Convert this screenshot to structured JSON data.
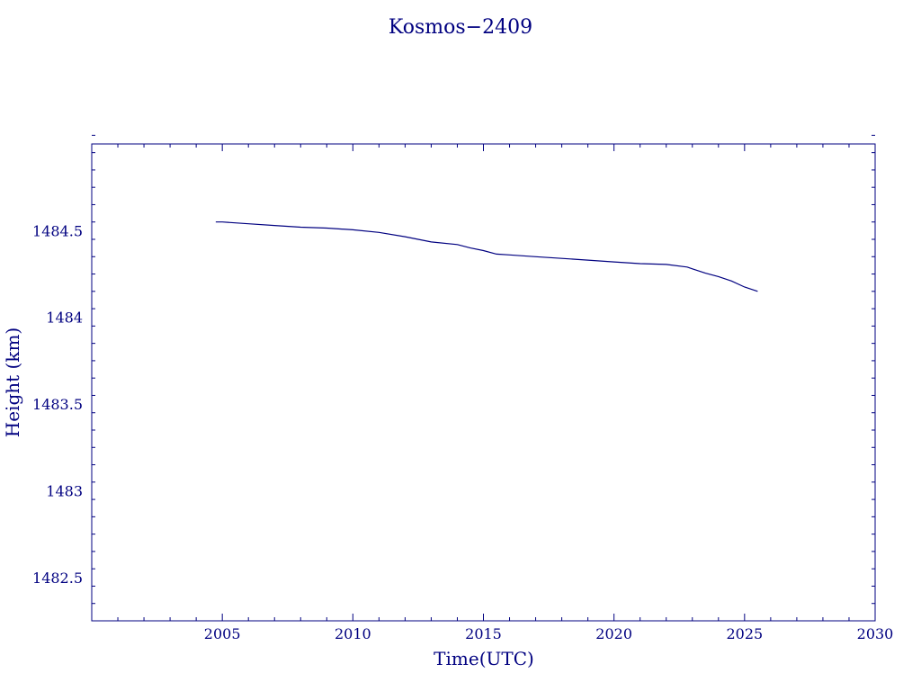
{
  "chart_data": {
    "type": "line",
    "title": "Kosmos−2409",
    "xlabel": "Time(UTC)",
    "ylabel": "Height (km)",
    "xlim": [
      2000,
      2030
    ],
    "ylim": [
      1482.25,
      1485.0
    ],
    "x_ticks": [
      2005,
      2010,
      2015,
      2020,
      2025,
      2030
    ],
    "x_tick_labels": [
      "2005",
      "2010",
      "2015",
      "2020",
      "2025",
      "2030"
    ],
    "x_minor_step": 1,
    "y_ticks": [
      1482.5,
      1483,
      1483.5,
      1484,
      1484.5
    ],
    "y_tick_labels": [
      "1482.5",
      "1483",
      "1483.5",
      "1484",
      "1484.5"
    ],
    "y_minor_step": 0.1,
    "grid": false,
    "color": "#000080",
    "series": [
      {
        "x": [
          2004.75,
          2005.0,
          2006.0,
          2007.0,
          2008.0,
          2009.0,
          2010.0,
          2011.0,
          2012.0,
          2013.0,
          2014.0,
          2014.5,
          2015.0,
          2015.5,
          2016.0,
          2017.0,
          2018.0,
          2019.0,
          2020.0,
          2021.0,
          2022.0,
          2022.8,
          2023.0,
          2023.5,
          2024.0,
          2024.5,
          2025.0,
          2025.5
        ],
        "y": [
          1484.55,
          1484.55,
          1484.54,
          1484.53,
          1484.52,
          1484.515,
          1484.505,
          1484.49,
          1484.465,
          1484.435,
          1484.42,
          1484.4,
          1484.385,
          1484.365,
          1484.36,
          1484.35,
          1484.34,
          1484.33,
          1484.32,
          1484.31,
          1484.305,
          1484.29,
          1484.28,
          1484.255,
          1484.235,
          1484.21,
          1484.175,
          1484.15
        ]
      }
    ]
  }
}
